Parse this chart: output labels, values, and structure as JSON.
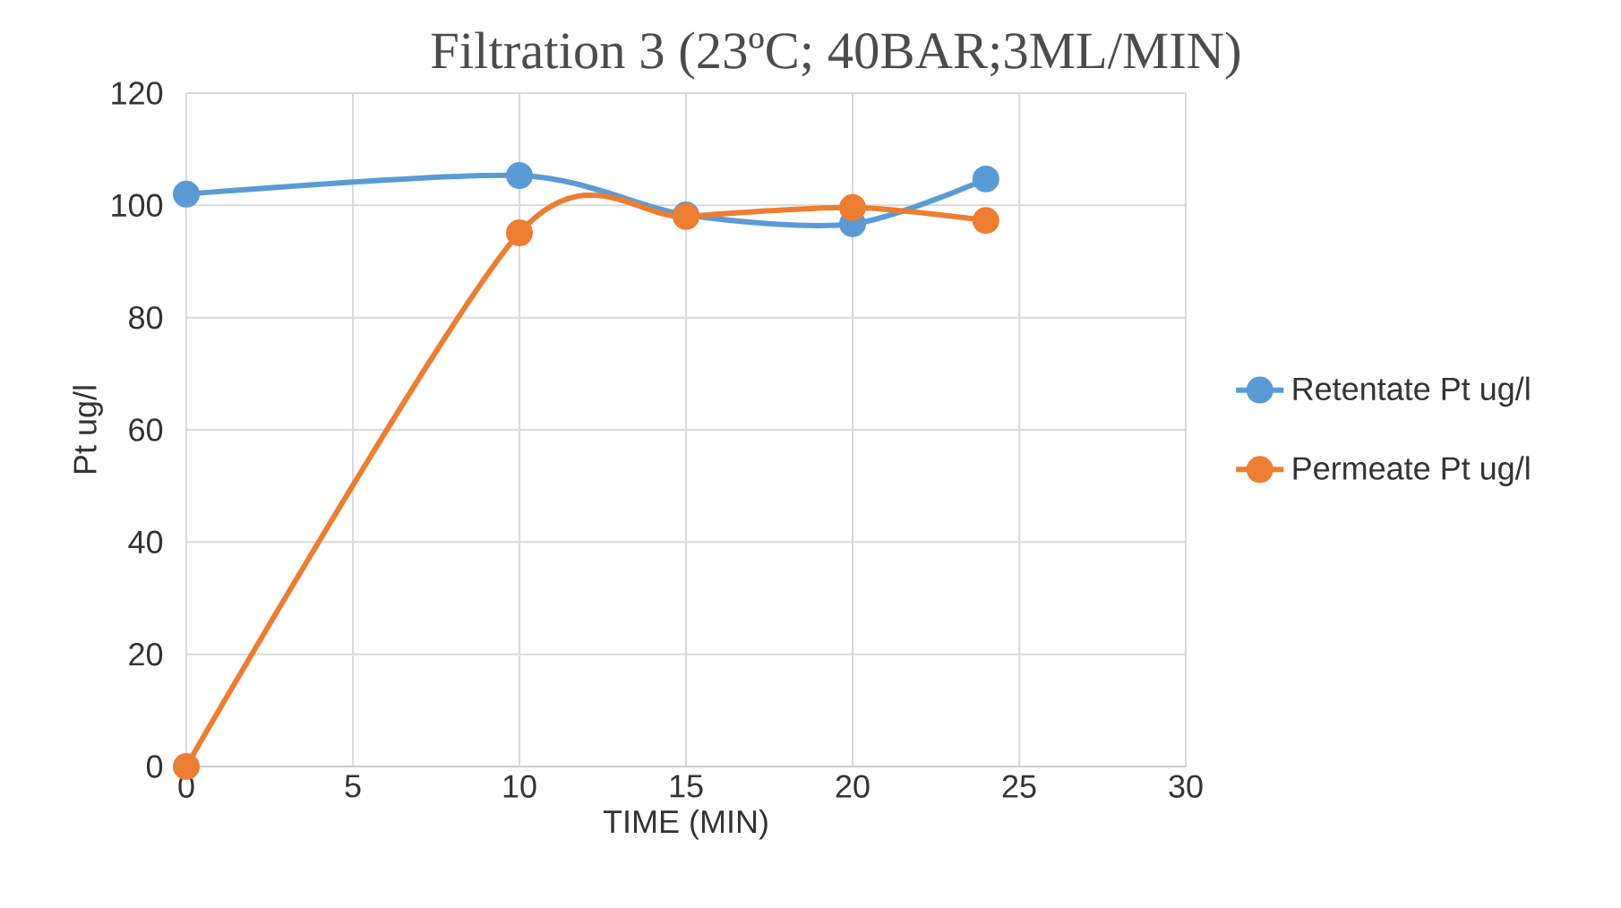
{
  "chart_data": {
    "type": "line",
    "title": "Filtration 3 (23ºC; 40BAR;3ML/MIN)",
    "xlabel": "TIME (MIN)",
    "ylabel": "Pt ug/l",
    "x": [
      0,
      10,
      15,
      20,
      24
    ],
    "series": [
      {
        "name": "Retentate Pt ug/l",
        "color": "#5b9bd5",
        "values": [
          102,
          105.3,
          98.3,
          96.7,
          104.7
        ]
      },
      {
        "name": "Permeate Pt ug/l",
        "color": "#ed7d31",
        "values": [
          0,
          95.1,
          98,
          99.6,
          97.3
        ]
      }
    ],
    "xlim": [
      0,
      30
    ],
    "xticks": [
      0,
      5,
      10,
      15,
      20,
      25,
      30
    ],
    "ylim": [
      0,
      120
    ],
    "yticks": [
      0,
      20,
      40,
      60,
      80,
      100,
      120
    ],
    "grid": true,
    "legend": "right",
    "marker": "circle",
    "line_style": "solid"
  }
}
